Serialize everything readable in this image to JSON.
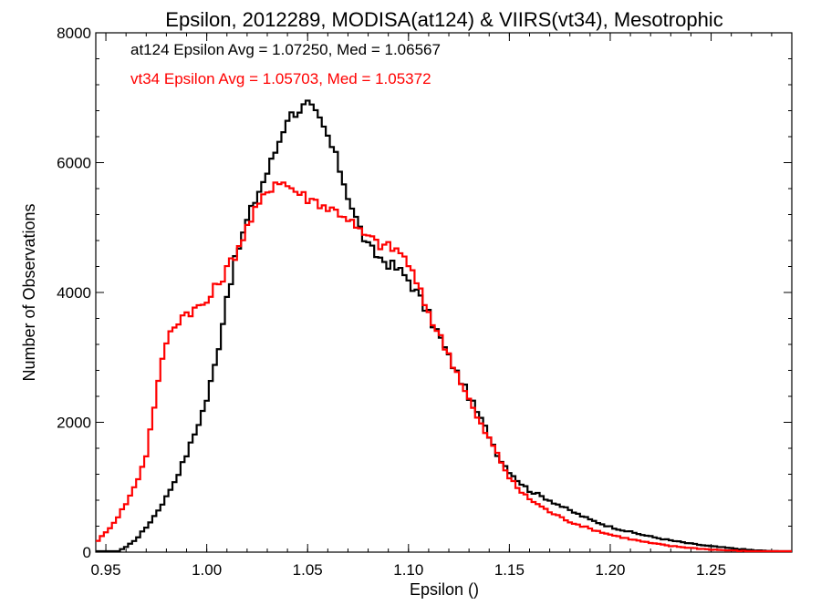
{
  "chart_data": {
    "type": "line",
    "title": "Epsilon, 2012289, MODISA(at124) & VIIRS(vt34), Mesotrophic",
    "xlabel": "Epsilon ()",
    "ylabel": "Number of Observations",
    "xlim": [
      0.945,
      1.29
    ],
    "ylim": [
      0,
      8000
    ],
    "x_ticks": [
      0.95,
      1.0,
      1.05,
      1.1,
      1.15,
      1.2,
      1.25
    ],
    "x_tick_labels": [
      "0.95",
      "1.00",
      "1.05",
      "1.10",
      "1.15",
      "1.20",
      "1.25"
    ],
    "y_ticks": [
      0,
      2000,
      4000,
      6000,
      8000
    ],
    "y_tick_labels": [
      "0",
      "2000",
      "4000",
      "6000",
      "8000"
    ],
    "grid": false,
    "legend_position": "top-left",
    "annotations": [
      {
        "text": "at124 Epsilon Avg = 1.07250, Med = 1.06567",
        "color": "#000000"
      },
      {
        "text": "vt34 Epsilon Avg = 1.05703, Med = 1.05372",
        "color": "#ff0000"
      }
    ],
    "series": [
      {
        "color": "#000000",
        "x": [
          0.945,
          0.955,
          0.96,
          0.965,
          0.97,
          0.975,
          0.98,
          0.985,
          0.99,
          0.995,
          1.0,
          1.005,
          1.01,
          1.015,
          1.02,
          1.025,
          1.03,
          1.035,
          1.04,
          1.045,
          1.05,
          1.055,
          1.06,
          1.065,
          1.07,
          1.075,
          1.08,
          1.085,
          1.09,
          1.095,
          1.1,
          1.105,
          1.11,
          1.115,
          1.12,
          1.125,
          1.13,
          1.135,
          1.14,
          1.145,
          1.15,
          1.155,
          1.16,
          1.17,
          1.18,
          1.19,
          1.2,
          1.21,
          1.22,
          1.23,
          1.24,
          1.25,
          1.26,
          1.27,
          1.28,
          1.29
        ],
        "y": [
          0,
          0,
          80,
          200,
          380,
          600,
          850,
          1150,
          1500,
          1900,
          2350,
          3000,
          3950,
          4600,
          5100,
          5500,
          5850,
          6250,
          6700,
          6800,
          6900,
          6700,
          6400,
          6000,
          5500,
          5050,
          4700,
          4550,
          4450,
          4350,
          4200,
          3950,
          3650,
          3350,
          3000,
          2700,
          2400,
          2100,
          1800,
          1450,
          1250,
          1080,
          950,
          800,
          640,
          500,
          390,
          310,
          240,
          180,
          130,
          90,
          60,
          30,
          15,
          5
        ]
      },
      {
        "color": "#ff0000",
        "x": [
          0.945,
          0.95,
          0.955,
          0.96,
          0.965,
          0.97,
          0.975,
          0.98,
          0.985,
          0.99,
          0.995,
          1.0,
          1.005,
          1.01,
          1.015,
          1.02,
          1.025,
          1.03,
          1.035,
          1.04,
          1.045,
          1.05,
          1.055,
          1.06,
          1.065,
          1.07,
          1.075,
          1.08,
          1.085,
          1.09,
          1.095,
          1.1,
          1.105,
          1.11,
          1.115,
          1.12,
          1.125,
          1.13,
          1.135,
          1.14,
          1.145,
          1.15,
          1.155,
          1.16,
          1.17,
          1.18,
          1.19,
          1.2,
          1.21,
          1.22,
          1.23,
          1.24,
          1.25,
          1.26,
          1.27,
          1.28,
          1.29
        ],
        "y": [
          150,
          300,
          500,
          750,
          1050,
          1500,
          2450,
          3250,
          3550,
          3700,
          3750,
          3850,
          4100,
          4350,
          4650,
          5000,
          5300,
          5550,
          5750,
          5650,
          5550,
          5450,
          5400,
          5300,
          5250,
          5150,
          4950,
          4850,
          4750,
          4700,
          4650,
          4450,
          4050,
          3700,
          3350,
          3050,
          2700,
          2350,
          2000,
          1750,
          1450,
          1150,
          950,
          820,
          620,
          470,
          360,
          270,
          200,
          140,
          95,
          65,
          40,
          25,
          12,
          6,
          2
        ]
      }
    ]
  }
}
